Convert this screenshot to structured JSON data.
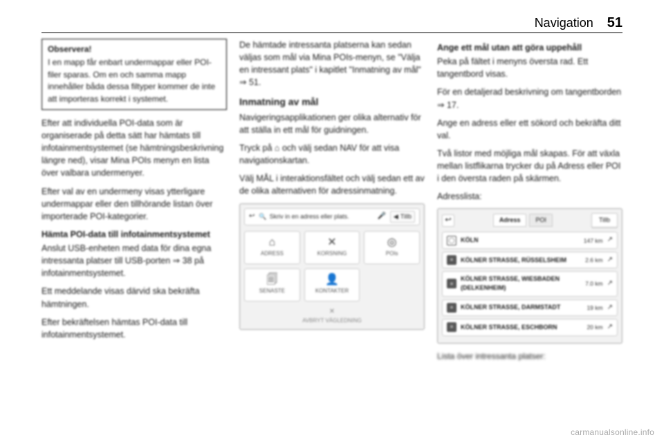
{
  "header": {
    "chapter": "Navigation",
    "page": "51"
  },
  "col1": {
    "note_title": "Observera!",
    "note_body": "I en mapp får enbart undermappar eller POI-filer sparas. Om en och samma mapp innehåller båda dessa filtyper kommer de inte att importeras korrekt i systemet.",
    "p1": "Efter att individuella POI-data som är organiserade på detta sätt har hämtats till infotainmentsystemet (se hämtningsbeskrivning längre ned), visar Mina POIs menyn en lista över valbara undermenyer.",
    "p2": "Efter val av en undermeny visas ytterligare undermappar eller den tillhörande listan över importerade POI-kategorier.",
    "h4a": "Hämta POI-data till infotainmentsystemet",
    "p3": "Anslut USB-enheten med data för dina egna intressanta platser till USB-porten ⇒ 38 på infotainmentsystemet.",
    "p4": "Ett meddelande visas därvid ska bekräfta hämtningen.",
    "p5": "Efter bekräftelsen hämtas POI-data till infotainmentsystemet."
  },
  "col2": {
    "p1": "De hämtade intressanta platserna kan sedan väljas som mål via Mina POIs-menyn, se \"Välja en intressant plats\" i kapitlet \"Inmatning av mål\" ⇒ 51.",
    "h3": "Inmatning av mål",
    "p2": "Navigeringsapplikationen ger olika alternativ för att ställa in ett mål för guidningen.",
    "p3": "Tryck på ⌂ och välj sedan NAV för att visa navigationskartan.",
    "p4": "Välj MÅL i interaktionsfältet och välj sedan ett av de olika alternativen för adressinmatning.",
    "screen": {
      "search_placeholder": "Skriv in en adress eller plats.",
      "back_label": "Tillb",
      "tiles": [
        {
          "icon": "⌂",
          "label": "ADRESS"
        },
        {
          "icon": "✕",
          "label": "KORSNING"
        },
        {
          "icon": "◎",
          "label": "POIs"
        },
        {
          "icon": "🗐",
          "label": "SENASTE"
        },
        {
          "icon": "👤",
          "label": "KONTAKTER"
        }
      ],
      "cancel_label": "AVBRYT VÄGLEDNING"
    }
  },
  "col3": {
    "h4": "Ange ett mål utan att göra uppehåll",
    "p1": "Peka på fältet i menyns översta rad. Ett tangentbord visas.",
    "p2": "För en detaljerad beskrivning om tangentborden ⇒ 17.",
    "p3": "Ange en adress eller ett sökord och bekräfta ditt val.",
    "p4": "Två listor med möjliga mål skapas. För att växla mellan listflikarna trycker du på Adress eller POI i den översta raden på skärmen.",
    "label_addresslist": "Adresslista:",
    "screen": {
      "tabs": {
        "address": "Adress",
        "poi": "POI"
      },
      "back_label": "Tillb",
      "rows": [
        {
          "type": "city",
          "name": "KÖLN",
          "dist": "147 km"
        },
        {
          "type": "street",
          "name": "KÖLNER STRASSE, RÜSSELSHEIM",
          "dist": "2.6 km"
        },
        {
          "type": "street",
          "name": "KÖLNER STRASSE, WIESBADEN (DELKENHEIM)",
          "dist": "7.0 km"
        },
        {
          "type": "street",
          "name": "KÖLNER STRASSE, DARMSTADT",
          "dist": "19 km"
        },
        {
          "type": "street",
          "name": "KÖLNER STRASSE, ESCHBORN",
          "dist": "20 km"
        }
      ]
    },
    "caption_after": "Lista över intressanta platser:"
  },
  "watermark": "carmanualsonline.info"
}
